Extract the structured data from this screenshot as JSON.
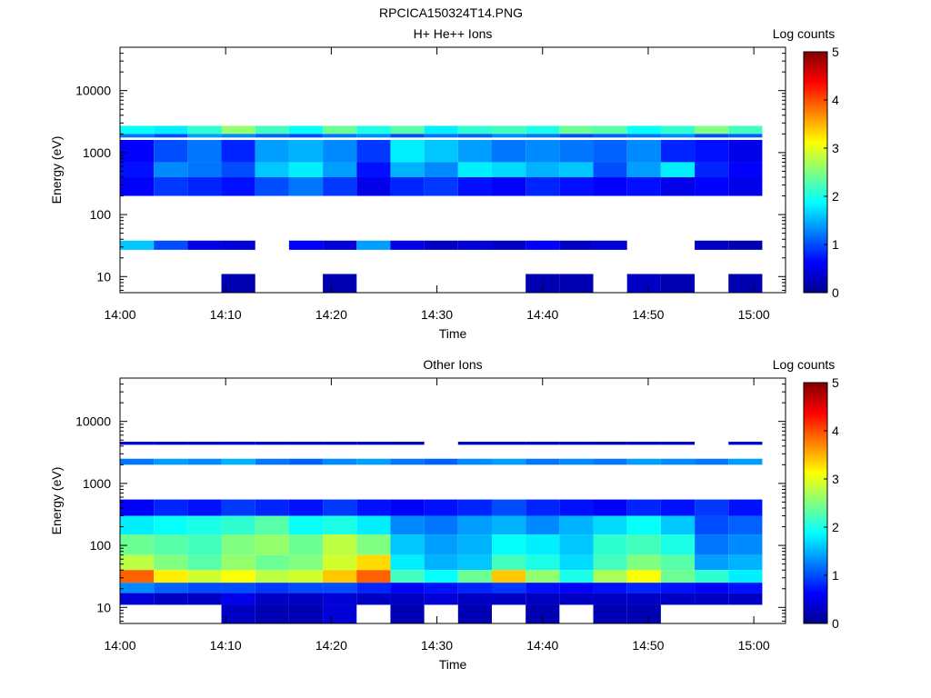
{
  "figure_title": "RPCICA150324T14.PNG",
  "colormap": [
    "#00008f",
    "#0000ff",
    "#0080ff",
    "#00ffff",
    "#80ff80",
    "#ffff00",
    "#ff8000",
    "#ff0000",
    "#800000"
  ],
  "chart_data": [
    {
      "type": "heatmap",
      "title": "H+ He++ Ions",
      "xlabel": "Time",
      "ylabel": "Energy (eV)",
      "x_range": [
        "14:00",
        "15:03"
      ],
      "x_ticks": [
        "14:00",
        "14:10",
        "14:20",
        "14:30",
        "14:40",
        "14:50",
        "15:00"
      ],
      "y_scale": "log",
      "y_range": [
        5.5,
        50000
      ],
      "y_ticks": [
        "10",
        "100",
        "1000",
        "10000"
      ],
      "colorbar": {
        "label": "Log counts",
        "range": [
          0,
          5
        ],
        "ticks": [
          "0",
          "1",
          "2",
          "3",
          "4",
          "5"
        ]
      },
      "time_bins_minutes": 3.2,
      "bands": [
        {
          "e_min": 2000,
          "e_max": 2700,
          "values": [
            1.9,
            1.8,
            2.1,
            2.6,
            2.2,
            1.9,
            2.4,
            2.0,
            2.3,
            1.8,
            2.1,
            2.2,
            2.0,
            2.4,
            2.3,
            1.9,
            2.1,
            2.5,
            2.2
          ]
        },
        {
          "e_min": 1750,
          "e_max": 2000,
          "values": [
            1.2,
            1.0,
            1.4,
            1.3,
            1.1,
            1.0,
            1.2,
            1.3,
            1.0,
            1.2,
            1.1,
            1.3,
            1.2,
            1.0,
            1.1,
            1.2,
            1.3,
            1.0,
            1.1
          ]
        },
        {
          "e_min": 700,
          "e_max": 1600,
          "values": [
            0.6,
            1.0,
            1.2,
            0.8,
            1.4,
            1.5,
            1.3,
            0.9,
            1.8,
            1.6,
            1.4,
            1.2,
            1.3,
            1.2,
            1.1,
            1.3,
            0.8,
            0.7,
            0.5
          ]
        },
        {
          "e_min": 400,
          "e_max": 700,
          "values": [
            0.7,
            1.3,
            1.2,
            1.0,
            1.6,
            1.8,
            1.4,
            0.7,
            1.5,
            1.3,
            1.8,
            1.7,
            1.5,
            1.6,
            1.0,
            1.4,
            1.8,
            0.8,
            0.6
          ]
        },
        {
          "e_min": 200,
          "e_max": 400,
          "values": [
            0.6,
            0.9,
            0.8,
            0.7,
            1.0,
            1.2,
            0.9,
            0.5,
            0.8,
            0.9,
            0.7,
            0.6,
            0.8,
            0.7,
            0.6,
            0.7,
            0.5,
            0.6,
            0.5
          ]
        },
        {
          "e_min": 27,
          "e_max": 38,
          "values": [
            1.6,
            1.0,
            0.5,
            0.4,
            0,
            0.6,
            0.4,
            1.4,
            0.5,
            0.3,
            0.4,
            0.3,
            0.6,
            0.3,
            0.4,
            0,
            0,
            0.3,
            0.2
          ]
        },
        {
          "e_min": 5.5,
          "e_max": 11,
          "values": [
            0,
            0,
            0,
            0.2,
            0,
            0,
            0.2,
            0,
            0,
            0,
            0,
            0,
            0.2,
            0.2,
            0,
            0.3,
            0.2,
            0,
            0.2
          ]
        }
      ]
    },
    {
      "type": "heatmap",
      "title": "Other Ions",
      "xlabel": "Time",
      "ylabel": "Energy (eV)",
      "x_range": [
        "14:00",
        "15:03"
      ],
      "x_ticks": [
        "14:00",
        "14:10",
        "14:20",
        "14:30",
        "14:40",
        "14:50",
        "15:00"
      ],
      "y_scale": "log",
      "y_range": [
        5.5,
        50000
      ],
      "y_ticks": [
        "10",
        "100",
        "1000",
        "10000"
      ],
      "colorbar": {
        "label": "Log counts",
        "range": [
          0,
          5
        ],
        "ticks": [
          "0",
          "1",
          "2",
          "3",
          "4",
          "5"
        ]
      },
      "time_bins_minutes": 3.2,
      "bands": [
        {
          "e_min": 2000,
          "e_max": 2500,
          "values": [
            1.2,
            1.4,
            1.3,
            1.5,
            1.2,
            1.1,
            1.3,
            1.4,
            1.2,
            1.1,
            1.3,
            1.4,
            1.2,
            1.3,
            1.2,
            1.4,
            1.3,
            1.2,
            1.4
          ]
        },
        {
          "e_min": 4200,
          "e_max": 4700,
          "values": [
            0.4,
            0.3,
            0.3,
            0.4,
            0.3,
            0.3,
            0.3,
            0.3,
            0.2,
            0,
            0.3,
            0.3,
            0.3,
            0.3,
            0.2,
            0.3,
            0.3,
            0,
            0.4
          ]
        },
        {
          "e_min": 300,
          "e_max": 550,
          "values": [
            0.6,
            0.8,
            0.7,
            0.9,
            0.8,
            0.7,
            0.9,
            0.7,
            0.6,
            0.7,
            0.8,
            1.0,
            0.8,
            0.7,
            0.6,
            0.8,
            0.7,
            0.9,
            0.7
          ]
        },
        {
          "e_min": 150,
          "e_max": 300,
          "values": [
            1.8,
            1.9,
            2.0,
            2.1,
            2.3,
            1.9,
            2.0,
            1.8,
            1.3,
            1.2,
            1.4,
            1.5,
            1.3,
            1.5,
            1.7,
            1.9,
            1.6,
            1.0,
            1.1
          ]
        },
        {
          "e_min": 70,
          "e_max": 150,
          "values": [
            2.4,
            2.3,
            2.2,
            2.5,
            2.6,
            2.4,
            2.8,
            2.5,
            1.6,
            1.4,
            1.5,
            1.9,
            1.8,
            1.6,
            2.1,
            2.2,
            2.0,
            1.2,
            1.3
          ]
        },
        {
          "e_min": 40,
          "e_max": 70,
          "values": [
            2.8,
            2.5,
            2.3,
            2.6,
            2.4,
            2.5,
            2.9,
            3.3,
            1.8,
            1.5,
            1.6,
            2.2,
            2.0,
            1.7,
            2.2,
            2.5,
            2.3,
            1.4,
            1.5
          ]
        },
        {
          "e_min": 25,
          "e_max": 40,
          "values": [
            3.9,
            3.2,
            2.9,
            3.1,
            2.8,
            2.9,
            3.4,
            3.9,
            2.2,
            1.9,
            2.4,
            3.4,
            2.6,
            2.0,
            2.7,
            3.1,
            2.4,
            2.1,
            1.8
          ]
        },
        {
          "e_min": 17,
          "e_max": 25,
          "values": [
            1.3,
            1.1,
            1.0,
            1.0,
            0.9,
            1.0,
            1.0,
            0.8,
            0.6,
            0.7,
            0.8,
            0.9,
            0.7,
            0.6,
            0.7,
            0.8,
            0.7,
            0.6,
            0.7
          ]
        },
        {
          "e_min": 11,
          "e_max": 17,
          "values": [
            0.4,
            0.3,
            0.3,
            0.5,
            0.3,
            0.3,
            0.4,
            0.3,
            0.3,
            0.4,
            0.3,
            0.3,
            0.3,
            0.3,
            0.3,
            0.3,
            0.3,
            0.3,
            0.3
          ]
        },
        {
          "e_min": 5.5,
          "e_max": 11,
          "values": [
            0,
            0,
            0,
            0.3,
            0.2,
            0.2,
            0.4,
            0,
            0.2,
            0,
            0.2,
            0,
            0.2,
            0,
            0.2,
            0.2,
            0,
            0,
            0
          ]
        }
      ]
    }
  ]
}
